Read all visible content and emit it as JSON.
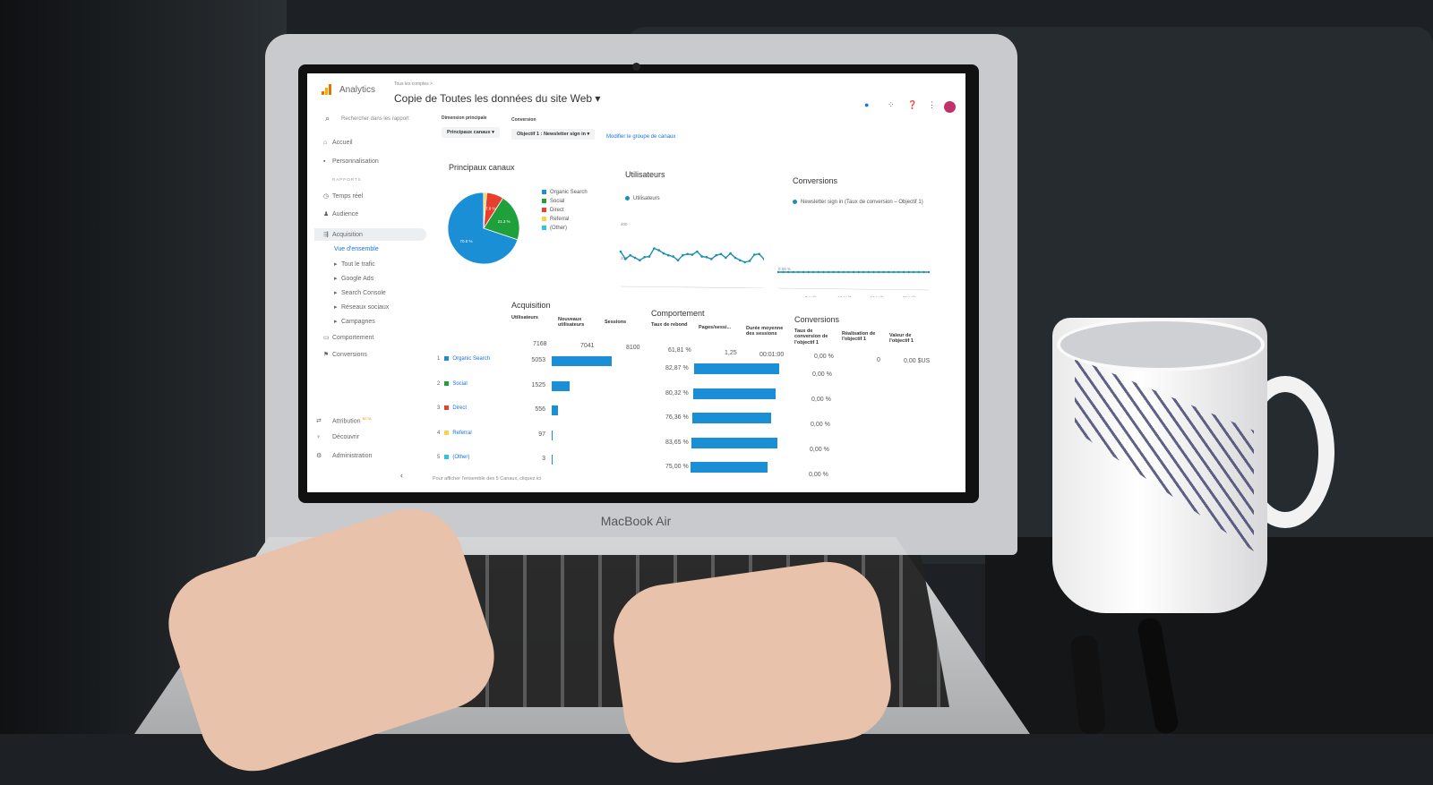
{
  "device": {
    "brand_label": "MacBook Air"
  },
  "app": {
    "name": "Analytics",
    "breadcrumb": "Tous les comptes >",
    "title": "Copie de Toutes les données du site Web",
    "title_caret": "▾",
    "icons": [
      "notifications-icon",
      "apps-grid-icon",
      "help-icon",
      "more-vert-icon",
      "avatar"
    ]
  },
  "search": {
    "placeholder": "Rechercher dans les rapport"
  },
  "sidebar": {
    "items": [
      {
        "label": "Accueil",
        "icon": "⌂"
      },
      {
        "label": "Personnalisation",
        "icon": "▪"
      },
      {
        "label": "RAPPORTS",
        "icon": ""
      },
      {
        "label": "Temps réel",
        "icon": "◷"
      },
      {
        "label": "Audience",
        "icon": "♟"
      },
      {
        "label": "Acquisition",
        "icon": "⇶",
        "active": true
      },
      {
        "label": "Vue d'ensemble",
        "icon": "",
        "selected": true
      },
      {
        "label": "Tout le trafic",
        "icon": "▸"
      },
      {
        "label": "Google Ads",
        "icon": "▸"
      },
      {
        "label": "Search Console",
        "icon": "▸"
      },
      {
        "label": "Réseaux sociaux",
        "icon": "▸"
      },
      {
        "label": "Campagnes",
        "icon": "▸"
      },
      {
        "label": "Comportement",
        "icon": "▭"
      },
      {
        "label": "Conversions",
        "icon": "⚑"
      }
    ],
    "bottom": [
      {
        "label": "Attribution",
        "badge": "BETA",
        "icon": "⇄"
      },
      {
        "label": "Découvrir",
        "icon": "♀"
      },
      {
        "label": "Administration",
        "icon": "⚙"
      }
    ],
    "collapse": "‹"
  },
  "filters": {
    "dimension_label": "Dimension principale",
    "dimension_value": "Principaux canaux",
    "conversion_label": "Conversion",
    "conversion_value": "Objectif 1 : Newsletter sign in",
    "modify_link": "Modifier le groupe de canaux"
  },
  "colors": {
    "organic": "#1a8fd6",
    "social": "#1fa03a",
    "direct": "#e8402e",
    "referral": "#f7d24a",
    "other": "#2bc6e0",
    "line": "#1a8fb0"
  },
  "chart_data": [
    {
      "type": "pie",
      "title": "Principaux canaux",
      "categories": [
        "Organic Search",
        "Social",
        "Direct",
        "Referral",
        "(Other)"
      ],
      "values": [
        5053,
        1525,
        556,
        97,
        3
      ],
      "labels": [
        "70.5 %",
        "21.3 %",
        "7.8 %",
        "",
        ""
      ],
      "legend": "right"
    },
    {
      "type": "line",
      "title": "Utilisateurs",
      "series": [
        {
          "name": "Utilisateurs",
          "values": [
            300,
            240,
            270,
            250,
            230,
            255,
            260,
            325,
            310,
            285,
            270,
            260,
            230,
            270,
            280,
            275,
            300,
            260,
            255,
            240,
            270,
            280,
            250,
            285,
            250,
            230,
            215,
            225,
            275,
            280,
            240
          ]
        }
      ],
      "yticks": [
        "400",
        "200"
      ],
      "ylim": [
        150,
        450
      ],
      "xticks": [
        "7 août",
        "10 août",
        "17 août",
        "24 août"
      ]
    },
    {
      "type": "line",
      "title": "Conversions",
      "series": [
        {
          "name": "Newsletter sign in (Taux de conversion – Objectif 1)",
          "values": [
            0,
            0,
            0,
            0,
            0,
            0,
            0,
            0,
            0,
            0,
            0,
            0,
            0,
            0,
            0,
            0,
            0,
            0,
            0,
            0,
            0,
            0,
            0,
            0,
            0,
            0,
            0,
            0,
            0,
            0,
            0
          ]
        }
      ],
      "yticks": [
        "100,00 %",
        "0,00 %"
      ],
      "ylim": [
        0,
        100
      ],
      "xticks": [
        "3 août",
        "10 août",
        "17 août",
        "24 août"
      ]
    }
  ],
  "acquisition": {
    "title": "Acquisition",
    "headers": [
      "Utilisateurs",
      "Nouveaux utilisateurs",
      "Sessions"
    ],
    "totals": [
      "7168",
      "7041",
      "8100"
    ],
    "rows": [
      {
        "rank": "1",
        "channel": "Organic Search",
        "users": "5053",
        "usersN": 5053
      },
      {
        "rank": "2",
        "channel": "Social",
        "users": "1525",
        "usersN": 1525
      },
      {
        "rank": "3",
        "channel": "Direct",
        "users": "556",
        "usersN": 556
      },
      {
        "rank": "4",
        "channel": "Referral",
        "users": "97",
        "usersN": 97
      },
      {
        "rank": "5",
        "channel": "(Other)",
        "users": "3",
        "usersN": 3
      }
    ],
    "footer": "Pour afficher l'ensemble des 5 Canaux, cliquez ici"
  },
  "behavior": {
    "title": "Comportement",
    "headers": [
      "Taux de rebond",
      "Pages/sessi...",
      "Durée moyenne des sessions"
    ],
    "totals": [
      "61,81 %",
      "1,25",
      "00:01:00"
    ],
    "rows": [
      {
        "bounce": "82,87 %",
        "v": 82.87
      },
      {
        "bounce": "80,32 %",
        "v": 80.32
      },
      {
        "bounce": "76,36 %",
        "v": 76.36
      },
      {
        "bounce": "83,65 %",
        "v": 83.65
      },
      {
        "bounce": "75,00 %",
        "v": 75.0
      }
    ]
  },
  "conversions_table": {
    "title": "Conversions",
    "headers": [
      "Taux de conversion de l'objectif 1",
      "Réalisation de l'objectif 1",
      "Valeur de l'objectif 1"
    ],
    "totals": [
      "0,00 %",
      "0",
      "0,00 $US"
    ],
    "rows": [
      "0,00 %",
      "0,00 %",
      "0,00 %",
      "0,00 %",
      "0,00 %"
    ]
  }
}
